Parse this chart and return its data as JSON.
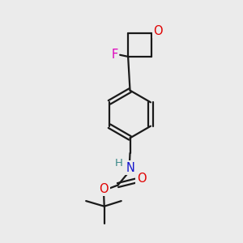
{
  "bg_color": "#ebebeb",
  "bond_color": "#1a1a1a",
  "O_color": "#e00000",
  "N_color": "#1414cc",
  "F_color": "#dd00bb",
  "H_color": "#3a8888",
  "lw": 1.6,
  "figsize": [
    3.0,
    3.0
  ],
  "dpi": 100,
  "xlim": [
    0,
    10
  ],
  "ylim": [
    0,
    10
  ]
}
